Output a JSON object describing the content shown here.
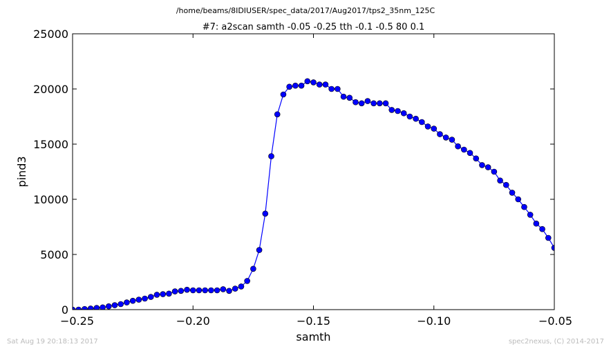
{
  "figure": {
    "suptitle": "/home/beams/8IDIUSER/spec_data/2017/Aug2017/tps2_35nm_125C",
    "footer_left": "Sat Aug 19 20:18:13 2017",
    "footer_right": "spec2nexus, (C) 2014-2017"
  },
  "chart_data": {
    "type": "line",
    "title": "#7: a2scan  samth -0.05 -0.25  tth -0.1 -0.5  80 0.1",
    "xlabel": "samth",
    "ylabel": "pind3",
    "xlim": [
      -0.25,
      -0.05
    ],
    "ylim": [
      0,
      25000
    ],
    "xticks": [
      -0.25,
      -0.2,
      -0.15,
      -0.1,
      -0.05
    ],
    "xtick_labels": [
      "−0.25",
      "−0.20",
      "−0.15",
      "−0.10",
      "−0.05"
    ],
    "yticks": [
      0,
      5000,
      10000,
      15000,
      20000,
      25000
    ],
    "ytick_labels": [
      "0",
      "5000",
      "10000",
      "15000",
      "20000",
      "25000"
    ],
    "grid": false,
    "series": [
      {
        "color": "#0000ff",
        "marker": "circle",
        "x": [
          -0.25,
          -0.2475,
          -0.245,
          -0.2425,
          -0.24,
          -0.2375,
          -0.235,
          -0.2325,
          -0.23,
          -0.2275,
          -0.225,
          -0.2225,
          -0.22,
          -0.2175,
          -0.215,
          -0.2125,
          -0.21,
          -0.2075,
          -0.205,
          -0.2025,
          -0.2,
          -0.1975,
          -0.195,
          -0.1925,
          -0.19,
          -0.1875,
          -0.185,
          -0.1825,
          -0.18,
          -0.1775,
          -0.175,
          -0.1725,
          -0.17,
          -0.1675,
          -0.165,
          -0.1625,
          -0.16,
          -0.1575,
          -0.155,
          -0.1525,
          -0.15,
          -0.1475,
          -0.145,
          -0.1425,
          -0.14,
          -0.1375,
          -0.135,
          -0.1325,
          -0.13,
          -0.1275,
          -0.125,
          -0.1225,
          -0.12,
          -0.1175,
          -0.115,
          -0.1125,
          -0.11,
          -0.1075,
          -0.105,
          -0.1025,
          -0.1,
          -0.0975,
          -0.095,
          -0.0925,
          -0.09,
          -0.0875,
          -0.085,
          -0.0825,
          -0.08,
          -0.0775,
          -0.075,
          -0.0725,
          -0.07,
          -0.0675,
          -0.065,
          -0.0625,
          -0.06,
          -0.0575,
          -0.055,
          -0.0525,
          -0.05
        ],
        "y": [
          0,
          0,
          50,
          100,
          150,
          200,
          300,
          400,
          500,
          650,
          800,
          900,
          1000,
          1150,
          1350,
          1400,
          1450,
          1650,
          1700,
          1800,
          1750,
          1750,
          1750,
          1750,
          1750,
          1850,
          1700,
          1900,
          2100,
          2600,
          3700,
          5400,
          8700,
          13900,
          17700,
          19500,
          20200,
          20300,
          20300,
          20700,
          20600,
          20400,
          20400,
          20000,
          20000,
          19300,
          19200,
          18800,
          18700,
          18900,
          18700,
          18700,
          18700,
          18100,
          18000,
          17800,
          17500,
          17300,
          17000,
          16600,
          16400,
          15900,
          15600,
          15400,
          14800,
          14500,
          14200,
          13700,
          13100,
          12900,
          12500,
          11700,
          11300,
          10600,
          10000,
          9300,
          8600,
          7800,
          7300,
          6500,
          5600
        ]
      }
    ]
  }
}
